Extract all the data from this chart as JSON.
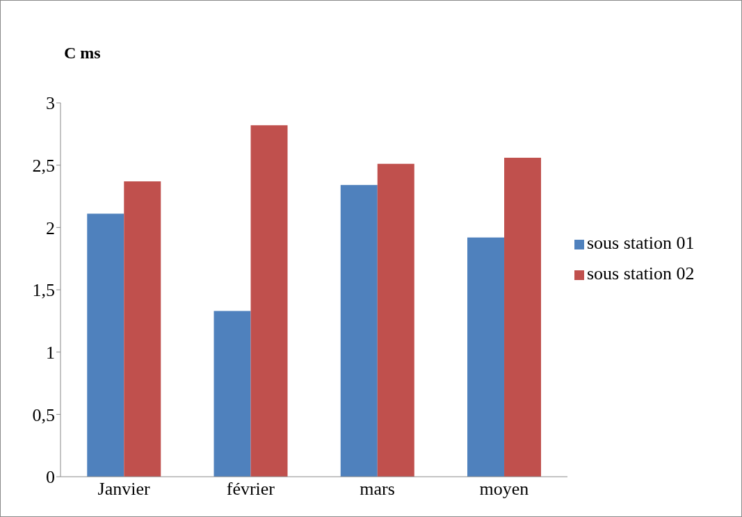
{
  "chart_data": {
    "type": "bar",
    "title": "C ms",
    "categories": [
      "Janvier",
      "février",
      "mars",
      "moyen"
    ],
    "series": [
      {
        "name": "sous station 01",
        "color": "#4f81bd",
        "values": [
          2.11,
          1.33,
          2.34,
          1.92
        ]
      },
      {
        "name": "sous station 02",
        "color": "#c0504d",
        "values": [
          2.37,
          2.82,
          2.51,
          2.56
        ]
      }
    ],
    "ylim": [
      0,
      3
    ],
    "yticks": [
      0,
      {
        "value": 0.5,
        "label": "0,5"
      },
      1,
      {
        "value": 1.5,
        "label": "1,5"
      },
      2,
      {
        "value": 2.5,
        "label": "2,5"
      },
      3
    ],
    "grid": false,
    "legend": "right"
  }
}
